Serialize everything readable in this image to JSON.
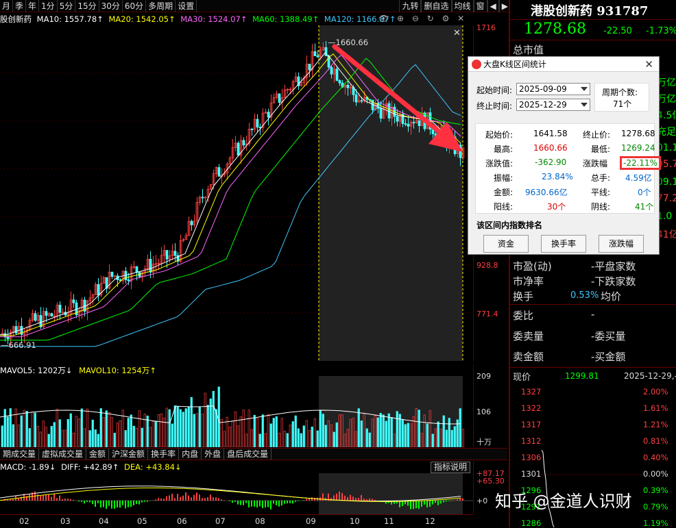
{
  "toolbar": {
    "items": [
      "月",
      "季",
      "年",
      "1分",
      "5分",
      "15分",
      "30分",
      "60分",
      "多周期",
      "设置"
    ],
    "right_items": [
      "九转",
      "删自选",
      "均线",
      "窗",
      "◀",
      "▶"
    ]
  },
  "ma_bar": {
    "name": "股创新药",
    "ma10": "MA10: 1557.78↑",
    "ma20": "MA20: 1542.05↑",
    "ma30": "MA30: 1524.07↑",
    "ma60": "MA60: 1388.49↑",
    "ma120": "MA120: 1166.87↑"
  },
  "colors": {
    "ma10": "#ffffff",
    "ma20": "#ffff00",
    "ma30": "#ff66ff",
    "ma60": "#00ff00",
    "ma120": "#40c8ff",
    "up": "#ff4040",
    "down": "#40ffff",
    "axis": "#ff4040"
  },
  "price_axis": [
    "1716",
    "928.8",
    "771.4"
  ],
  "chart_annotations": {
    "high": "1660.66",
    "low": "666.91"
  },
  "vol_bar": {
    "mavol5": "MAVOL5: 1202万↓",
    "mavol10": "MAVOL10: 1254万↑"
  },
  "vol_axis": [
    "209",
    "106",
    "十万"
  ],
  "tabs": [
    "期成交量",
    "虚拟成交量",
    "金额",
    "沪深金额",
    "换手率",
    "内盘",
    "外盘",
    "盘后成交量"
  ],
  "macd_bar": {
    "macd": "MACD: -1.89↓",
    "diff": "DIFF: +42.89↑",
    "dea": "DEA: +43.84↓",
    "explain": "指标说明"
  },
  "macd_axis": [
    "+87.17",
    "+65.30",
    "+0"
  ],
  "dates": [
    "02",
    "03",
    "04",
    "05",
    "06",
    "07",
    "08",
    "09",
    "10",
    "11",
    "12"
  ],
  "stock": {
    "title": "港股创新药 931787",
    "price": "1278.68",
    "change": "-22.50",
    "pct": "-1.73%"
  },
  "right_panel": {
    "total_mv": "总市值",
    "partial_right": [
      "万亿",
      "万亿",
      "4.5亿",
      "充足",
      "01.1",
      "05.7",
      "09.1",
      "77.2",
      "1.0",
      "41亿"
    ],
    "pe": "市盈(动)",
    "pb": "市净率",
    "turnover": "换手",
    "turnover_val": "0.53%",
    "avg": "均价",
    "flat": "平盘家数",
    "down": "下跌家数",
    "wb": "委比",
    "wbl": "委卖量",
    "wml": "委买量",
    "mje": "卖金额",
    "bje": "买金额",
    "dash": "-",
    "xj": "现价",
    "xj_val": "1299.81",
    "xj_date": "2025-12-29,-"
  },
  "mini_chart": {
    "left": [
      "1327",
      "1322",
      "1317",
      "1312",
      "1306",
      "1301",
      "1296",
      "1291",
      "1286"
    ],
    "right": [
      "2.00%",
      "1.61%",
      "1.21%",
      "0.81%",
      "0.40%",
      "0.00%",
      "0.39%",
      "0.79%",
      "1.19%"
    ]
  },
  "watermark": "知乎 @金道人识财",
  "dialog": {
    "title": "大盘K线区间统计",
    "start_label": "起始时间:",
    "start_value": "2025-09-09",
    "end_label": "终止时间:",
    "end_value": "2025-12-29",
    "period_label": "周期个数:",
    "period_value": "71个",
    "open_label": "起始价:",
    "open": "1641.58",
    "close_label": "终止价:",
    "close": "1278.68",
    "high_label": "最高:",
    "high": "1660.66",
    "low_label": "最低:",
    "low": "1269.24",
    "chg_label": "涨跌值:",
    "chg": "-362.90",
    "pct_label": "涨跌幅",
    "pct": "-22.11%",
    "amp_label": "振幅:",
    "amp": "23.84%",
    "hand_label": "总手:",
    "hand": "4.59亿",
    "amt_label": "金额:",
    "amt": "9630.66亿",
    "flat_label": "平线:",
    "flat": "0个",
    "up_label": "阳线:",
    "up": "30个",
    "down_label": "阴线:",
    "down": "41个",
    "rank_label": "该区间内指数排名",
    "btn_amount": "资金",
    "btn_turnover": "换手率",
    "btn_pct": "涨跌幅"
  },
  "chart_data": {
    "type": "candlestick",
    "title": "",
    "x": [
      "02",
      "03",
      "04",
      "05",
      "06",
      "07",
      "08",
      "09",
      "10",
      "11",
      "12"
    ],
    "close_approx": [
      700,
      790,
      880,
      960,
      1180,
      1400,
      1560,
      1620,
      1470,
      1400,
      1280
    ],
    "ylim": [
      666.91,
      1716
    ],
    "marked_high": 1660.66,
    "marked_low": 666.91
  }
}
